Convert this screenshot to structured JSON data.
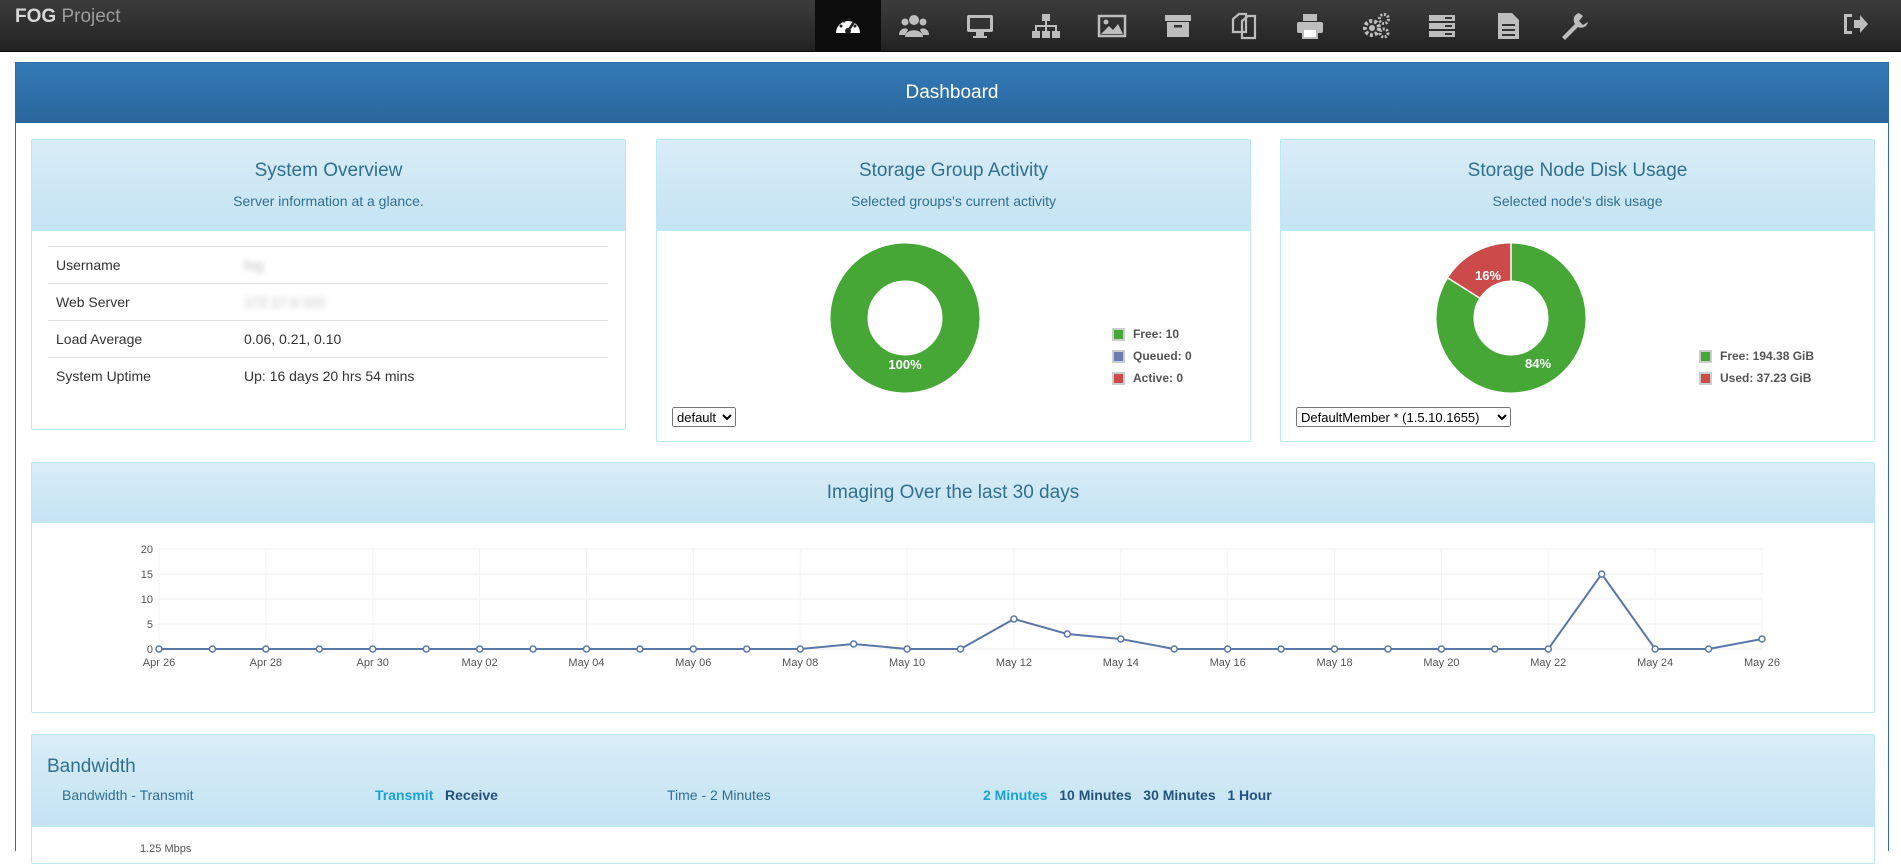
{
  "nav": {
    "brand_bold": "FOG",
    "brand_rest": " Project",
    "icons": [
      "dashboard-icon",
      "users-icon",
      "hosts-icon",
      "groups-icon",
      "images-icon",
      "storage-icon",
      "snapins-icon",
      "printers-icon",
      "settings-icon",
      "tasks-icon",
      "reports-icon",
      "plugins-icon"
    ],
    "logout_icon": "logout-icon"
  },
  "dashboard": {
    "title": "Dashboard"
  },
  "system_overview": {
    "title": "System Overview",
    "subtitle": "Server information at a glance.",
    "rows": [
      {
        "key": "Username",
        "value": "fog"
      },
      {
        "key": "Web Server",
        "value": "172.17.0.101"
      },
      {
        "key": "Load Average",
        "value": "0.06, 0.21, 0.10"
      },
      {
        "key": "System Uptime",
        "value": "Up: 16 days 20 hrs 54 mins"
      }
    ]
  },
  "storage_group": {
    "title": "Storage Group Activity",
    "subtitle": "Selected groups's current activity",
    "slice_label": "100%",
    "legend": [
      {
        "label": "Free: 10",
        "color": "#46a737"
      },
      {
        "label": "Queued: 0",
        "color": "#6c7caf"
      },
      {
        "label": "Active: 0",
        "color": "#cb4b4b"
      }
    ],
    "select_value": "default"
  },
  "storage_node": {
    "title": "Storage Node Disk Usage",
    "subtitle": "Selected node's disk usage",
    "free_label": "84%",
    "used_label": "16%",
    "used_fraction": 0.16,
    "legend": [
      {
        "label": "Free: 194.38 GiB",
        "color": "#46a737"
      },
      {
        "label": "Used: 37.23 GiB",
        "color": "#cb4b4b"
      }
    ],
    "select_value": "DefaultMember * (1.5.10.1655)"
  },
  "imaging": {
    "title": "Imaging Over the last 30 days"
  },
  "chart_data": {
    "type": "line",
    "title": "Imaging Over the last 30 days",
    "x": [
      "Apr 26",
      "Apr 27",
      "Apr 28",
      "Apr 29",
      "Apr 30",
      "May 01",
      "May 02",
      "May 03",
      "May 04",
      "May 05",
      "May 06",
      "May 07",
      "May 08",
      "May 09",
      "May 10",
      "May 11",
      "May 12",
      "May 13",
      "May 14",
      "May 15",
      "May 16",
      "May 17",
      "May 18",
      "May 19",
      "May 20",
      "May 21",
      "May 22",
      "May 23",
      "May 24",
      "May 25",
      "May 26"
    ],
    "values": [
      0,
      0,
      0,
      0,
      0,
      0,
      0,
      0,
      0,
      0,
      0,
      0,
      0,
      1,
      0,
      0,
      6,
      3,
      2,
      0,
      0,
      0,
      0,
      0,
      0,
      0,
      0,
      15,
      0,
      0,
      2
    ],
    "x_tick_labels": [
      "Apr 26",
      "Apr 28",
      "Apr 30",
      "May 02",
      "May 04",
      "May 06",
      "May 08",
      "May 10",
      "May 12",
      "May 14",
      "May 16",
      "May 18",
      "May 20",
      "May 22",
      "May 24",
      "May 26"
    ],
    "y_ticks": [
      0,
      5,
      10,
      15,
      20
    ],
    "ylim": [
      0,
      20
    ],
    "color": "#5b77a6",
    "grid": true
  },
  "bandwidth": {
    "title": "Bandwidth",
    "mode_label": "Bandwidth - Transmit",
    "transmit": "Transmit",
    "receive": "Receive",
    "time_label": "Time - 2 Minutes",
    "ranges": [
      "2 Minutes",
      "10 Minutes",
      "30 Minutes",
      "1 Hour"
    ],
    "y_top_label": "1.25 Mbps"
  }
}
